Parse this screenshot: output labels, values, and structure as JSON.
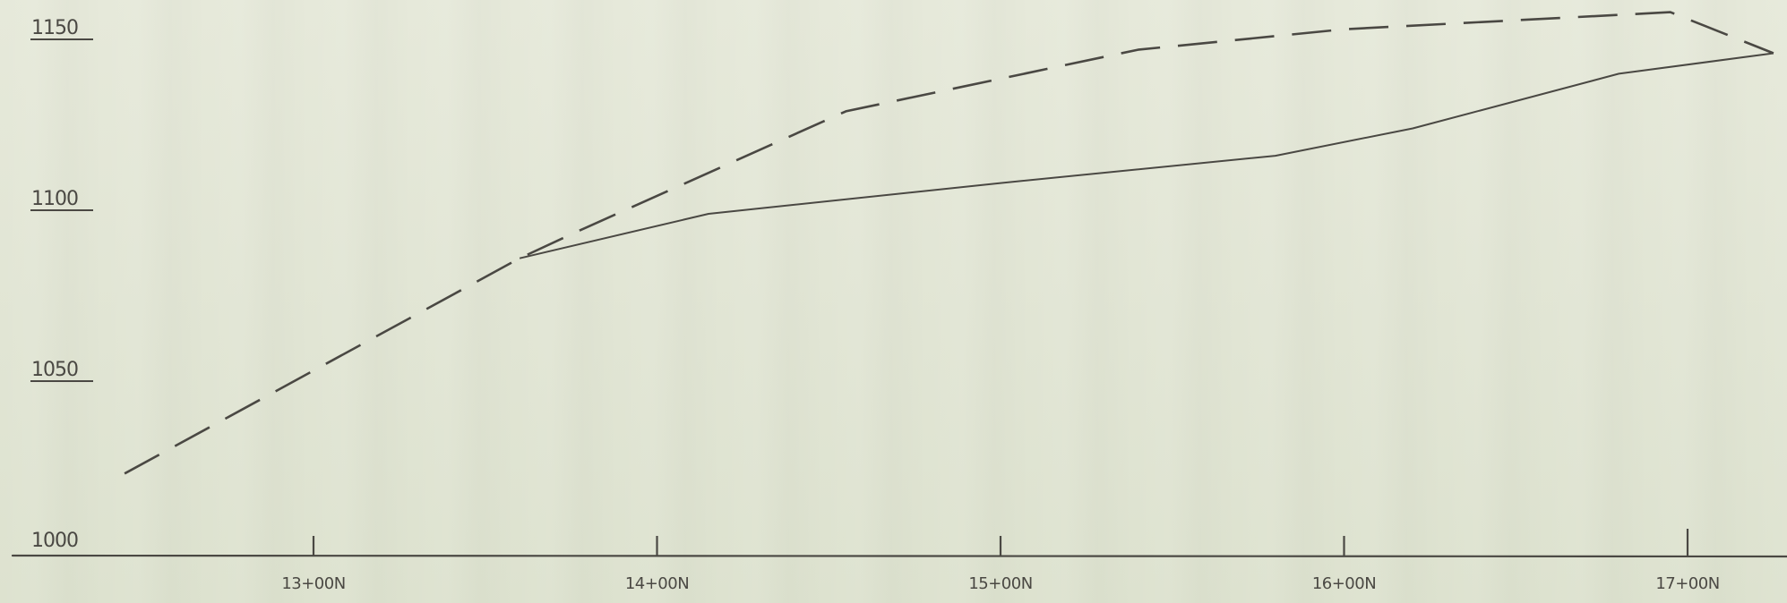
{
  "chart_data": {
    "type": "line",
    "title": "",
    "xlabel": "",
    "ylabel": "",
    "x_ticks": [
      {
        "value": 13,
        "label": "13+00N"
      },
      {
        "value": 14,
        "label": "14+00N"
      },
      {
        "value": 15,
        "label": "15+00N"
      },
      {
        "value": 16,
        "label": "16+00N"
      },
      {
        "value": 17,
        "label": "17+00N"
      }
    ],
    "y_ticks": [
      {
        "value": 1000,
        "label": "1000"
      },
      {
        "value": 1050,
        "label": "1050"
      },
      {
        "value": 1100,
        "label": "1100"
      },
      {
        "value": 1150,
        "label": "1150"
      }
    ],
    "xlim": [
      12.1,
      17.3
    ],
    "ylim": [
      1000,
      1160
    ],
    "grid": false,
    "series": [
      {
        "style": "dashed",
        "points": [
          {
            "x": 12.45,
            "y": 1024
          },
          {
            "x": 13.6,
            "y": 1087
          },
          {
            "x": 13.75,
            "y": 1094
          },
          {
            "x": 14.55,
            "y": 1130
          },
          {
            "x": 15.4,
            "y": 1148
          },
          {
            "x": 16.0,
            "y": 1154
          },
          {
            "x": 16.95,
            "y": 1159
          },
          {
            "x": 17.25,
            "y": 1147
          }
        ]
      },
      {
        "style": "solid",
        "points": [
          {
            "x": 13.6,
            "y": 1087
          },
          {
            "x": 14.15,
            "y": 1100
          },
          {
            "x": 15.0,
            "y": 1109
          },
          {
            "x": 15.8,
            "y": 1117
          },
          {
            "x": 16.2,
            "y": 1125
          },
          {
            "x": 16.8,
            "y": 1141
          },
          {
            "x": 17.25,
            "y": 1147
          }
        ]
      }
    ],
    "colors": {
      "ink": "#4a4843",
      "paper": "#e3e6d6"
    }
  }
}
